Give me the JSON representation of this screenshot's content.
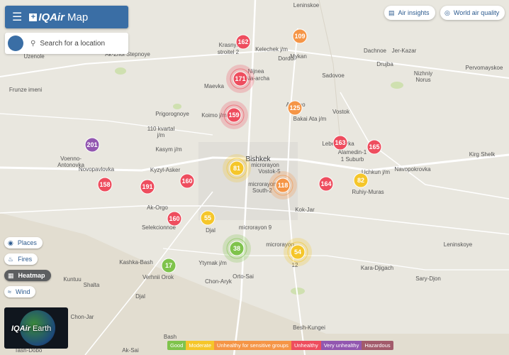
{
  "header": {
    "brand": "IQAir",
    "product": "Map"
  },
  "search": {
    "placeholder": "Search for a location"
  },
  "top_buttons": [
    "Air insights",
    "World air quality"
  ],
  "layers": [
    "Places",
    "Fires",
    "Heatmap",
    "Wind"
  ],
  "earth": {
    "brand": "IQAir",
    "product": "Earth"
  },
  "markers": [
    {
      "value": 162,
      "color": "#ee4d5e"
    },
    {
      "value": 109,
      "color": "#f59546"
    },
    {
      "value": 171,
      "color": "#ee4d5e"
    },
    {
      "value": 159,
      "color": "#ee4d5e"
    },
    {
      "value": 125,
      "color": "#f59546"
    },
    {
      "value": 201,
      "color": "#9257b0"
    },
    {
      "value": 163,
      "color": "#ee4d5e"
    },
    {
      "value": 165,
      "color": "#ee4d5e"
    },
    {
      "value": 81,
      "color": "#f5c62a"
    },
    {
      "value": 82,
      "color": "#f5c62a"
    },
    {
      "value": 158,
      "color": "#ee4d5e"
    },
    {
      "value": 191,
      "color": "#ee4d5e"
    },
    {
      "value": 160,
      "color": "#ee4d5e"
    },
    {
      "value": 118,
      "color": "#f59546"
    },
    {
      "value": 164,
      "color": "#ee4d5e"
    },
    {
      "value": 55,
      "color": "#f5c62a"
    },
    {
      "value": 160,
      "color": "#ee4d5e"
    },
    {
      "value": 38,
      "color": "#7fc34c"
    },
    {
      "value": 54,
      "color": "#f5c62a"
    },
    {
      "value": 17,
      "color": "#7fc34c"
    }
  ],
  "places": [
    "Leninskoe",
    "Krasnyi",
    "stroitel 2",
    "Kelechek j/m",
    "Dordoi",
    "Mykan",
    "Dachnoe",
    "Jer-Kazar",
    "Ak-Zhol Stepnoye",
    "Uzenole",
    "Drujba",
    "Nizhniy",
    "Norus",
    "Pervomayskoe",
    "Sadovoe",
    "Nijnea",
    "Ala-archa",
    "Maevka",
    "Frunze imeni",
    "Prigorognoye",
    "Koimo j/m",
    "Ala-Too",
    "Vostok",
    "Bakai Ata j/m",
    "110 kvartal",
    "j/m",
    "Kasym j/m",
    "Bishkek",
    "Lebedinovka",
    "Alamedin-1",
    "1 Suburb",
    "Kirg Shelk",
    "Voenno-",
    "Antonovka",
    "Novopavlovka",
    "Kyzyl-Asker",
    "microrayon",
    "Vostok-5",
    "microrayon",
    "South-2",
    "Uchkun j/m",
    "Navopokrovka",
    "Ruhiy-Muras",
    "Ak-Orgo",
    "Kok-Jar",
    "Selekcionnoe",
    "Djal",
    "microrayon 9",
    "microrayon",
    "12",
    "Leninskoye",
    "Kashka-Bash",
    "Ytymak j/m",
    "Orto-Sai",
    "Verhnii Orok",
    "Chon-Aryk",
    "Kuntuu",
    "Shalta",
    "Djal",
    "Kara-Djigach",
    "Sary-Djon",
    "Chon-Jar",
    "Besh-Kungei",
    "Bash",
    "Ak-Sai",
    "Tash-Dobo"
  ],
  "legend": [
    {
      "label": "Good",
      "color": "#7fc34c"
    },
    {
      "label": "Moderate",
      "color": "#f5c62a"
    },
    {
      "label": "Unhealthy for sensitive groups",
      "color": "#f59546"
    },
    {
      "label": "Unhealthy",
      "color": "#ee4d5e"
    },
    {
      "label": "Very unhealthy",
      "color": "#9257b0"
    },
    {
      "label": "Hazardous",
      "color": "#a25b6b"
    }
  ]
}
